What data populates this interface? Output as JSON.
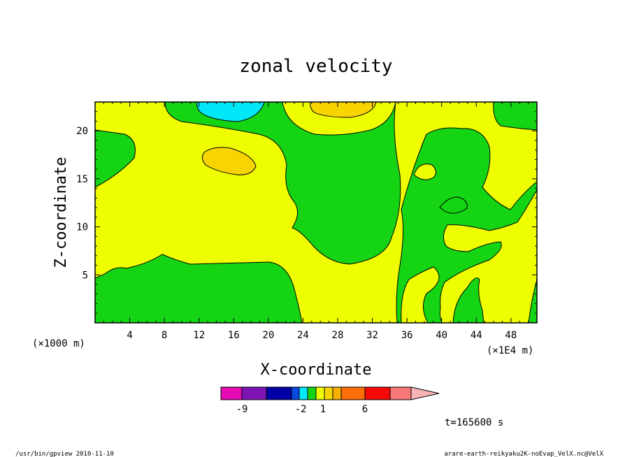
{
  "chart_data": {
    "type": "heatmap",
    "title": "zonal velocity",
    "xlabel": "X-coordinate",
    "ylabel": "Z-coordinate",
    "x_unit_left": "(×1000 m)",
    "x_unit_right": "(×1E4 m)",
    "xlim": [
      0,
      51
    ],
    "ylim": [
      0,
      23
    ],
    "x_ticks": [
      4,
      8,
      12,
      16,
      20,
      24,
      28,
      32,
      36,
      40,
      44,
      48
    ],
    "y_ticks": [
      5,
      10,
      15,
      20
    ],
    "colorbar": {
      "colors": [
        "#e40ab4",
        "#7e14b4",
        "#0000a6",
        "#0a46e0",
        "#00e8f8",
        "#14d414",
        "#eefe00",
        "#f8d400",
        "#f8b000",
        "#fc6e08",
        "#f40808",
        "#f87878",
        "#f8b4b4"
      ],
      "tick_labels": [
        "-9",
        "-2",
        "1",
        "6"
      ],
      "extend": "max"
    },
    "regions": [
      {
        "name": "positive-small",
        "level": "0 to 1",
        "color": "#eefe00"
      },
      {
        "name": "negative-small",
        "level": "-1 to 0",
        "color": "#14d414"
      },
      {
        "name": "positive-moderate",
        "level": "1 to 2",
        "color": "#f8d400"
      },
      {
        "name": "negative-moderate",
        "level": "-2 to -1",
        "color": "#00e8f8"
      }
    ],
    "time_label": "t=165600 s"
  },
  "footer": {
    "left": "/usr/bin/gpview   2010-11-10",
    "right": "arare-earth-reikyaku2K-noEvap_VelX.nc@VelX"
  }
}
